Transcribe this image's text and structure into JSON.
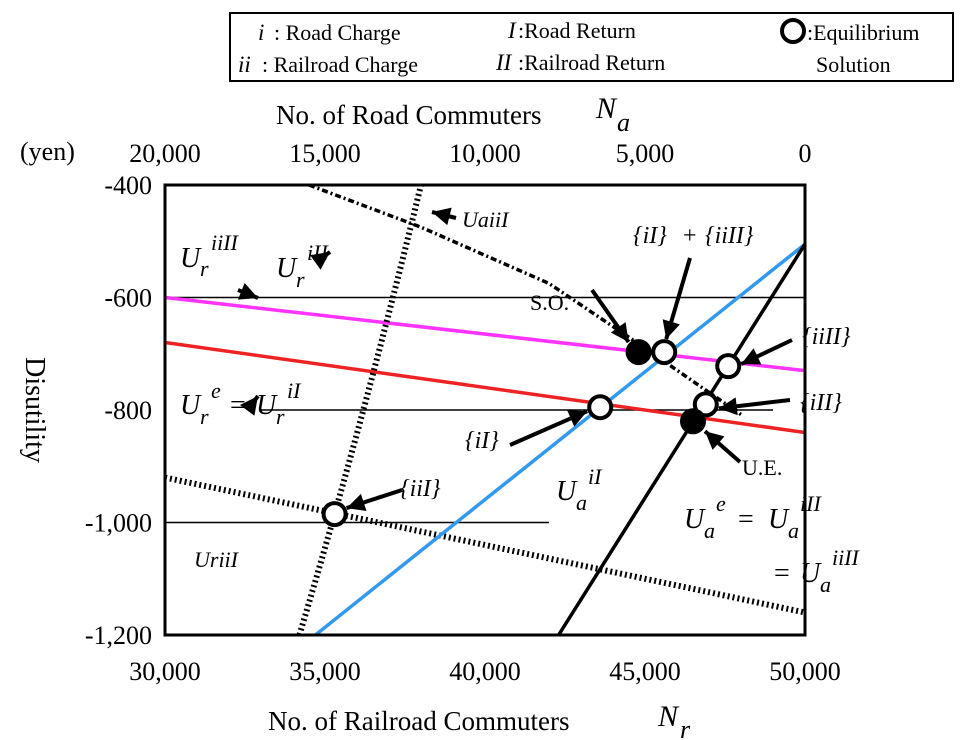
{
  "chart_data": {
    "type": "line",
    "title": "",
    "xlabel": "No. of Railroad Commuters",
    "xlabel_symbol": "N",
    "xlabel_sub": "r",
    "x_top_label": "No. of Road Commuters",
    "x_top_symbol": "N",
    "x_top_sub": "a",
    "ylabel": "Disutility",
    "y_unit": "(yen)",
    "xlim": [
      30000,
      50000
    ],
    "ylim": [
      -1200,
      -400
    ],
    "x_ticks": [
      "30,000",
      "35,000",
      "40,000",
      "45,000",
      "50,000"
    ],
    "x_tick_values": [
      30000,
      35000,
      40000,
      45000,
      50000
    ],
    "x_top_ticks": [
      "20,000",
      "15,000",
      "10,000",
      "5,000",
      "0"
    ],
    "y_ticks": [
      "-400",
      "-600",
      "-800",
      "-1,000",
      "-1,200"
    ],
    "y_tick_values": [
      -400,
      -600,
      -800,
      -1000,
      -1200
    ],
    "grid_y_values": [
      -600,
      -800,
      -1000
    ],
    "legend": {
      "i_sym": "i",
      "i_text": ": Road Charge",
      "ii_sym": "ii",
      "ii_text": ": Railroad Charge",
      "I_sym": "I",
      "I_text": ":Road Return",
      "II_sym": "II",
      "II_text": ":Railroad Return",
      "eq_text_1": ":Equilibrium",
      "eq_text_2": "Solution"
    },
    "series": [
      {
        "label": "UriiII",
        "color": "#ff33ff",
        "style": "solid",
        "x": [
          30000,
          50000
        ],
        "y": [
          -600,
          -730
        ]
      },
      {
        "label": "Ure = UriI",
        "color": "#ee2222",
        "style": "solid",
        "x": [
          30000,
          50000
        ],
        "y": [
          -680,
          -840
        ]
      },
      {
        "label": "UriiI",
        "color": "#000000",
        "style": "dotted",
        "x": [
          30000,
          50000
        ],
        "y": [
          -920,
          -1160
        ]
      },
      {
        "label": "UaiI",
        "color": "#3399ee",
        "style": "solid",
        "x": [
          34700,
          50000
        ],
        "y": [
          -1200,
          -505
        ]
      },
      {
        "label": "Uae = UaiII = UaiiII",
        "color": "#000000",
        "style": "solid",
        "x": [
          42300,
          50000
        ],
        "y": [
          -1200,
          -505
        ]
      },
      {
        "label": "UaiiI",
        "color": "#000000",
        "style": "dotted",
        "x": [
          34200,
          36200,
          38000
        ],
        "y": [
          -1200,
          -820,
          -400
        ]
      },
      {
        "label": "UriII",
        "color": "#000000",
        "style": "dashdot",
        "x": [
          34500,
          38000,
          42000,
          45000,
          48000
        ],
        "y": [
          -400,
          -475,
          -575,
          -690,
          -808
        ]
      }
    ],
    "points": [
      {
        "label": "S.O.",
        "x": 44800,
        "y": -697,
        "filled": true
      },
      {
        "label": "{iI} + {iiII}",
        "x": 45600,
        "y": -697,
        "filled": false
      },
      {
        "label": "{iiII}",
        "x": 47600,
        "y": -722,
        "filled": false
      },
      {
        "label": "{iII}",
        "x": 46900,
        "y": -790,
        "filled": false
      },
      {
        "label": "{iI}",
        "x": 43600,
        "y": -795,
        "filled": false
      },
      {
        "label": "U.E.",
        "x": 46500,
        "y": -820,
        "filled": true
      },
      {
        "label": "{iiI}",
        "x": 35300,
        "y": -985,
        "filled": false
      }
    ],
    "annotations": {
      "so": "S.O.",
      "ue": "U.E.",
      "iI_iiII_a": "{iI}",
      "iI_iiII_plus": "+",
      "iI_iiII_b": "{iiII}",
      "iiII": "{iiII}",
      "iII": "{iII}",
      "iI": "{iI}",
      "iiI": "{iiI}",
      "UaiiI": "UaiiI",
      "UriiI": "UriiI",
      "Ur_sym": "U",
      "Ur_sub": "r",
      "Ua_sym": "U",
      "Ua_sub": "a",
      "sup_iiII": "iiII",
      "sup_iII": "iII",
      "sup_e": "e",
      "sup_iI": "iI",
      "sup_iII_a": "iII",
      "sup_iiII_a": "iiII",
      "eq": "=",
      "eq2": "= "
    }
  }
}
